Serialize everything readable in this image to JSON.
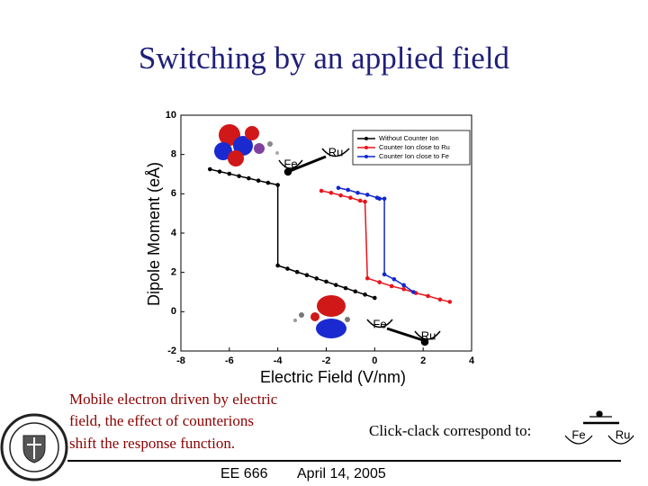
{
  "slide": {
    "title": "Switching by an applied field",
    "caption": [
      "Mobile electron driven by electric",
      "field, the effect of counterions",
      "shift the response function."
    ],
    "click_clack": "Click-clack correspond to:",
    "footer_left": "EE 666",
    "footer_right": "April 14, 2005",
    "inset_top": [
      "Ru",
      "Fe"
    ],
    "inset_bottom": [
      "Fe",
      "Ru"
    ],
    "click_clack_labels": [
      "Fe",
      "Ru"
    ]
  },
  "chart_data": {
    "type": "line",
    "xlabel": "Electric Field (V/nm)",
    "ylabel": "Dipole Moment (eÅ)",
    "xlim": [
      -8,
      4
    ],
    "xticks": [
      -8,
      -6,
      -4,
      -2,
      0,
      2,
      4
    ],
    "ylim": [
      -2,
      10
    ],
    "yticks": [
      -2,
      0,
      2,
      4,
      6,
      8,
      10
    ],
    "grid": false,
    "legend": "upper right",
    "series": [
      {
        "name": "Without Counter Ion",
        "color": "#000000",
        "x": [
          -6.8,
          -6.4,
          -6.0,
          -5.6,
          -5.2,
          -4.8,
          -4.4,
          -4.0,
          -4.0,
          -3.6,
          -3.2,
          -2.8,
          -2.4,
          -2.0,
          -1.6,
          -1.2,
          -0.8,
          -0.4,
          0.0
        ],
        "values": [
          7.25,
          7.13,
          7.02,
          6.9,
          6.79,
          6.67,
          6.56,
          6.45,
          2.35,
          2.19,
          2.02,
          1.86,
          1.69,
          1.53,
          1.36,
          1.2,
          1.03,
          0.87,
          0.7
        ]
      },
      {
        "name": "Counter Ion close to Ru",
        "color": "#e8141c",
        "x": [
          -2.2,
          -1.8,
          -1.4,
          -1.0,
          -0.6,
          -0.4,
          -0.3,
          0.2,
          0.7,
          1.2,
          1.7,
          2.2,
          2.7,
          3.1
        ],
        "values": [
          6.15,
          6.05,
          5.92,
          5.8,
          5.65,
          5.6,
          1.7,
          1.5,
          1.3,
          1.15,
          0.95,
          0.8,
          0.62,
          0.5
        ]
      },
      {
        "name": "Counter Ion close to Fe",
        "color": "#1028d0",
        "x": [
          -1.5,
          -1.1,
          -0.7,
          -0.3,
          0.1,
          0.2,
          0.4,
          0.4,
          0.8,
          1.2,
          1.6
        ],
        "values": [
          6.3,
          6.2,
          6.05,
          5.95,
          5.8,
          5.75,
          5.75,
          1.9,
          1.65,
          1.35,
          1.0
        ]
      }
    ]
  }
}
